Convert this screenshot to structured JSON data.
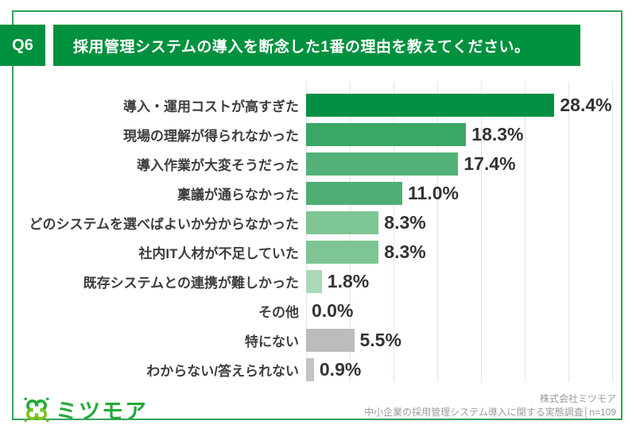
{
  "header": {
    "q_label": "Q6",
    "title": "採用管理システムの導入を断念した1番の理由を教えてください。",
    "accent_color": "#00913e"
  },
  "chart_data": {
    "type": "bar",
    "orientation": "horizontal",
    "unit": "%",
    "xlim": [
      0,
      35
    ],
    "gridline_step": 5,
    "grid": "vertical-only",
    "legend": "none",
    "categories": [
      "導入・運用コストが高すぎた",
      "現場の理解が得られなかった",
      "導入作業が大変そうだった",
      "稟議が通らなかった",
      "どのシステムを選べばよいか分からなかった",
      "社内IT人材が不足していた",
      "既存システムとの連携が難しかった",
      "その他",
      "特にない",
      "わからない/答えられない"
    ],
    "values": [
      28.4,
      18.3,
      17.4,
      11.0,
      8.3,
      8.3,
      1.8,
      0.0,
      5.5,
      0.9
    ],
    "value_labels": [
      "28.4%",
      "18.3%",
      "17.4%",
      "11.0%",
      "8.3%",
      "8.3%",
      "1.8%",
      "0.0%",
      "5.5%",
      "0.9%"
    ],
    "bar_colors": [
      "#039044",
      "#3aa765",
      "#52b177",
      "#4fae74",
      "#7ec594",
      "#7ec594",
      "#a9d9b6",
      "transparent",
      "#bcbcbc",
      "#c3c3c3"
    ]
  },
  "footer": {
    "logo_text": "ミツモア",
    "logo_color": "#22ab39",
    "logo_color_light": "#7cc31e",
    "source_line1": "株式会社ミツモア",
    "source_line2": "中小企業の採用管理システム導入に関する実態調査│n=109"
  }
}
